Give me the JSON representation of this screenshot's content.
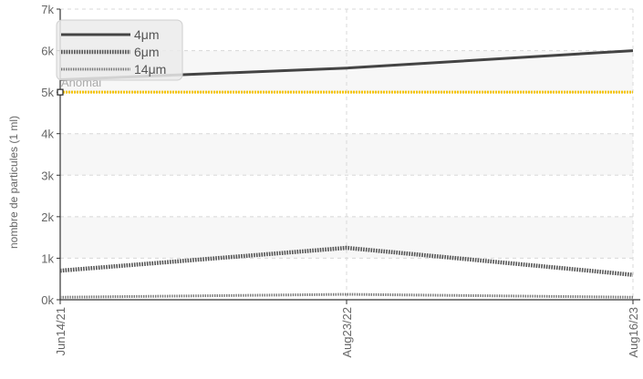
{
  "chart_data": {
    "type": "line",
    "title": "",
    "xlabel": "",
    "ylabel": "nombre de particules (1 ml)",
    "x": [
      "Jun14/21",
      "Aug23/22",
      "Aug16/23"
    ],
    "ylim": [
      0,
      7000
    ],
    "yticks": [
      0,
      1000,
      2000,
      3000,
      4000,
      5000,
      6000,
      7000
    ],
    "ytick_labels": [
      "0k",
      "1k",
      "2k",
      "3k",
      "4k",
      "5k",
      "6k",
      "7k"
    ],
    "grid": true,
    "legend_position": "top-left",
    "series": [
      {
        "name": "4μm",
        "values": [
          5300,
          5580,
          6000
        ],
        "color": "#444444",
        "style": "solid"
      },
      {
        "name": "6μm",
        "values": [
          700,
          1250,
          600
        ],
        "color": "#555555",
        "style": "dotted"
      },
      {
        "name": "14μm",
        "values": [
          60,
          130,
          60
        ],
        "color": "#777777",
        "style": "dotted-thin"
      }
    ],
    "threshold": {
      "label": "Anomal",
      "value": 5000,
      "color": "#f5c400"
    }
  }
}
